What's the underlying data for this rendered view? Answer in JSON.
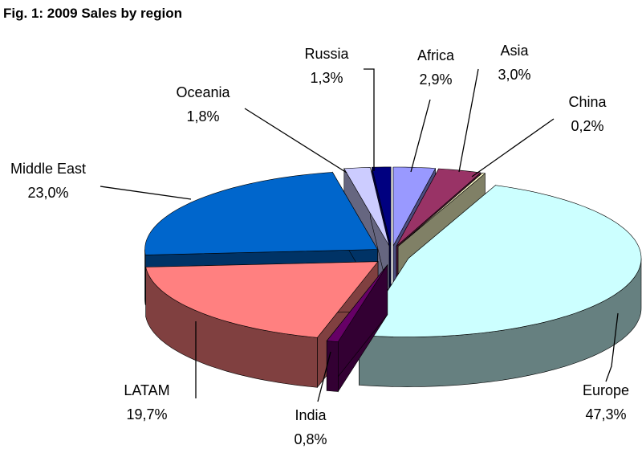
{
  "chart_data": {
    "type": "pie3d",
    "title": "Fig. 1: 2009 Sales by region",
    "categories": [
      "Africa",
      "Asia",
      "China",
      "Europe",
      "India",
      "LATAM",
      "Middle East",
      "Oceania",
      "Russia"
    ],
    "values": [
      2.9,
      3.0,
      0.2,
      47.3,
      0.8,
      19.7,
      23.0,
      1.8,
      1.3
    ],
    "value_labels": [
      "2,9%",
      "3,0%",
      "0,2%",
      "47,3%",
      "0,8%",
      "19,7%",
      "23,0%",
      "1,8%",
      "1,3%"
    ],
    "colors": [
      "#9999ff",
      "#993366",
      "#ffffcc",
      "#ccffff",
      "#660066",
      "#ff8080",
      "#0066cc",
      "#ccccff",
      "#000080"
    ]
  }
}
